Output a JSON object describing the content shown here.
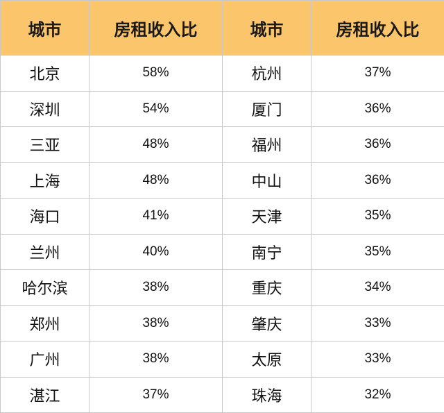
{
  "headers": [
    "城市",
    "房租收入比",
    "城市",
    "房租收入比"
  ],
  "rows": [
    [
      "北京",
      "58%",
      "杭州",
      "37%"
    ],
    [
      "深圳",
      "54%",
      "厦门",
      "36%"
    ],
    [
      "三亚",
      "48%",
      "福州",
      "36%"
    ],
    [
      "上海",
      "48%",
      "中山",
      "36%"
    ],
    [
      "海口",
      "41%",
      "天津",
      "35%"
    ],
    [
      "兰州",
      "40%",
      "南宁",
      "35%"
    ],
    [
      "哈尔滨",
      "38%",
      "重庆",
      "34%"
    ],
    [
      "郑州",
      "38%",
      "肇庆",
      "33%"
    ],
    [
      "广州",
      "38%",
      "太原",
      "33%"
    ],
    [
      "湛江",
      "37%",
      "珠海",
      "32%"
    ]
  ],
  "colors": {
    "header_background": "#fbc56c",
    "grid_line": "#c8c8c8"
  }
}
